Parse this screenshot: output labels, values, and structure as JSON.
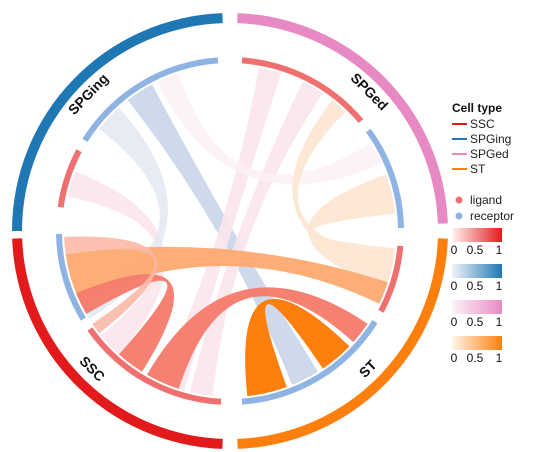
{
  "diagram": {
    "sectors": [
      {
        "id": "SPGing",
        "label": "SPGing",
        "start": 270,
        "end": 358,
        "color": "#1f77b4"
      },
      {
        "id": "SPGed",
        "label": "SPGed",
        "start": 2,
        "end": 88,
        "color": "#e78ac3"
      },
      {
        "id": "ST",
        "label": "ST",
        "start": 92,
        "end": 178,
        "color": "#ff7f0e"
      },
      {
        "id": "SSC",
        "label": "SSC",
        "start": 182,
        "end": 268,
        "color": "#e31a1c"
      }
    ],
    "segments": [
      {
        "id": "SPGing-ligand",
        "start": 278,
        "end": 298,
        "role": "ligand",
        "color": "#f07070"
      },
      {
        "id": "SPGing-receptor",
        "start": 302,
        "end": 356,
        "role": "receptor",
        "color": "#8fb4e3"
      },
      {
        "id": "SPGed-ligand",
        "start": 4,
        "end": 50,
        "role": "ligand",
        "color": "#f07070"
      },
      {
        "id": "SPGed-receptor",
        "start": 54,
        "end": 89,
        "role": "receptor",
        "color": "#8fb4e3"
      },
      {
        "id": "ST-ligand",
        "start": 95,
        "end": 118,
        "role": "ligand",
        "color": "#f07070"
      },
      {
        "id": "ST-receptor",
        "start": 122,
        "end": 176,
        "role": "receptor",
        "color": "#8fb4e3"
      },
      {
        "id": "SSC-ligand",
        "start": 183,
        "end": 235,
        "role": "ligand",
        "color": "#f07070"
      },
      {
        "id": "SSC-receptor",
        "start": 239,
        "end": 269,
        "role": "receptor",
        "color": "#8fb4e3"
      }
    ],
    "links": [
      {
        "a1": 282,
        "a2": 291,
        "b1": 222,
        "b2": 231,
        "color": "#fbe6ec",
        "opacity": 0.9
      },
      {
        "a1": 308,
        "a2": 318,
        "b1": 238,
        "b2": 246,
        "color": "#e3e9f3",
        "opacity": 0.9
      },
      {
        "a1": 322,
        "a2": 332,
        "b1": 148,
        "b2": 158,
        "color": "#c9d6ea",
        "opacity": 0.9
      },
      {
        "a1": 10,
        "a2": 18,
        "b1": 196,
        "b2": 205,
        "color": "#fbe6ec",
        "opacity": 0.9
      },
      {
        "a1": 26,
        "a2": 34,
        "b1": 186,
        "b2": 194,
        "color": "#fbe6ec",
        "opacity": 0.9
      },
      {
        "a1": 58,
        "a2": 66,
        "b1": 334,
        "b2": 342,
        "color": "#fdf1f5",
        "opacity": 0.9
      },
      {
        "a1": 70,
        "a2": 84,
        "b1": 96,
        "b2": 110,
        "color": "#fde5d2",
        "opacity": 0.9
      },
      {
        "a1": 100,
        "a2": 106,
        "b1": 38,
        "b2": 44,
        "color": "#fde5d2",
        "opacity": 0.9
      },
      {
        "a1": 108,
        "a2": 116,
        "b1": 246,
        "b2": 262,
        "color": "#fdaa70",
        "opacity": 0.95
      },
      {
        "a1": 160,
        "a2": 174,
        "b1": 134,
        "b2": 146,
        "color": "#ff7f0e",
        "opacity": 1.0
      },
      {
        "a1": 198,
        "a2": 210,
        "b1": 124,
        "b2": 132,
        "color": "#f57a6a",
        "opacity": 0.95
      },
      {
        "a1": 212,
        "a2": 222,
        "b1": 240,
        "b2": 248,
        "color": "#f57a6a",
        "opacity": 0.95
      },
      {
        "a1": 232,
        "a2": 236,
        "b1": 262,
        "b2": 268,
        "color": "#fcb9a8",
        "opacity": 0.9
      }
    ]
  },
  "legend": {
    "title": "Cell type",
    "celltypes": [
      {
        "label": "SSC",
        "color": "#e31a1c"
      },
      {
        "label": "SPGing",
        "color": "#1f77b4"
      },
      {
        "label": "SPGed",
        "color": "#e78ac3"
      },
      {
        "label": "ST",
        "color": "#ff7f0e"
      }
    ],
    "roles": [
      {
        "label": "ligand",
        "color": "#f07070"
      },
      {
        "label": "receptor",
        "color": "#8fb4e3"
      }
    ],
    "colorbars": [
      {
        "from": "#fff4f2",
        "to": "#e31a1c",
        "ticks": [
          "0",
          "0.5",
          "1"
        ]
      },
      {
        "from": "#f0f4fa",
        "to": "#1f77b4",
        "ticks": [
          "0",
          "0.5",
          "1"
        ]
      },
      {
        "from": "#fdf3f8",
        "to": "#e78ac3",
        "ticks": [
          "0",
          "0.5",
          "1"
        ]
      },
      {
        "from": "#fff5ec",
        "to": "#ff7f0e",
        "ticks": [
          "0",
          "0.5",
          "1"
        ]
      }
    ]
  }
}
